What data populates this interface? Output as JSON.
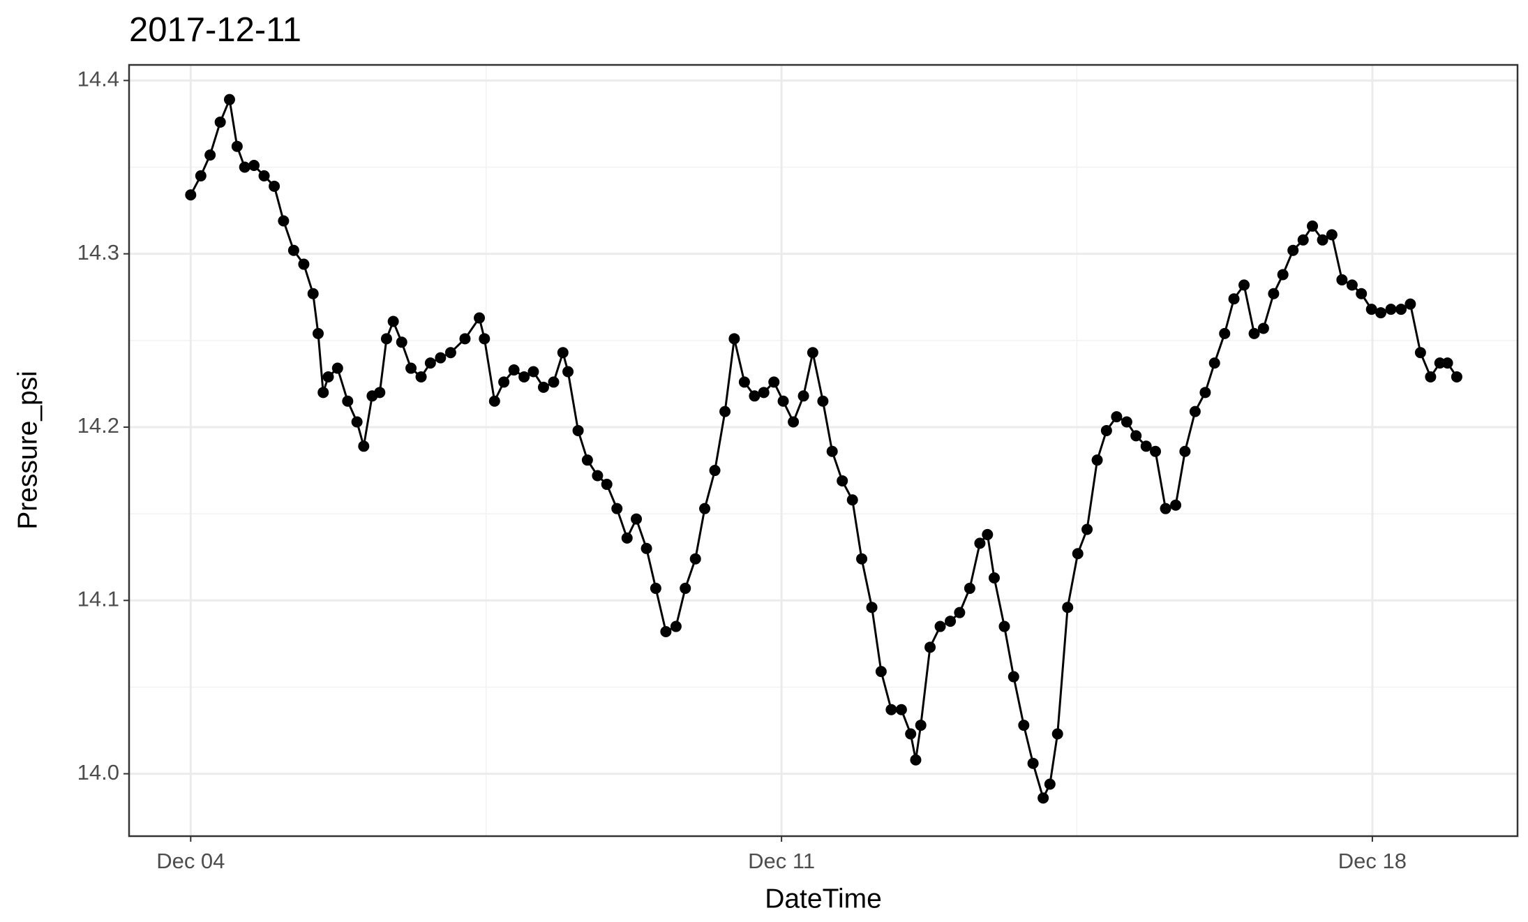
{
  "chart_data": {
    "type": "scatter",
    "title": "2017-12-11",
    "xlabel": "DateTime",
    "ylabel": "Pressure_psi",
    "color": "#000000",
    "connect": true,
    "grid": true,
    "xlim": [
      3.27,
      19.72
    ],
    "ylim": [
      13.964,
      14.409
    ],
    "xticks": [
      {
        "value": 4,
        "label": "Dec 04"
      },
      {
        "value": 11,
        "label": "Dec 11"
      },
      {
        "value": 18,
        "label": "Dec 18"
      }
    ],
    "xminor": [
      7.5,
      14.5
    ],
    "yticks": [
      {
        "value": 14,
        "label": "14.0"
      },
      14.1,
      14.2,
      14.3,
      14.4
    ],
    "yminor": [
      14.05,
      14.15,
      14.25,
      14.35
    ],
    "x": [
      4.0,
      4.12,
      4.23,
      4.35,
      4.46,
      4.55,
      4.64,
      4.75,
      4.87,
      4.99,
      5.1,
      5.22,
      5.34,
      5.45,
      5.51,
      5.57,
      5.63,
      5.74,
      5.86,
      5.97,
      6.05,
      6.15,
      6.24,
      6.32,
      6.4,
      6.5,
      6.61,
      6.73,
      6.84,
      6.96,
      7.08,
      7.25,
      7.42,
      7.48,
      7.6,
      7.71,
      7.83,
      7.95,
      8.06,
      8.18,
      8.3,
      8.41,
      8.47,
      8.59,
      8.7,
      8.82,
      8.93,
      9.05,
      9.17,
      9.28,
      9.4,
      9.51,
      9.63,
      9.75,
      9.86,
      9.98,
      10.09,
      10.21,
      10.33,
      10.44,
      10.56,
      10.68,
      10.79,
      10.91,
      11.02,
      11.14,
      11.26,
      11.37,
      11.49,
      11.6,
      11.72,
      11.84,
      11.95,
      12.07,
      12.18,
      12.3,
      12.42,
      12.53,
      12.59,
      12.65,
      12.76,
      12.88,
      13.0,
      13.11,
      13.23,
      13.35,
      13.44,
      13.52,
      13.64,
      13.75,
      13.87,
      13.98,
      14.1,
      14.18,
      14.27,
      14.39,
      14.51,
      14.62,
      14.74,
      14.85,
      14.97,
      15.09,
      15.2,
      15.32,
      15.43,
      15.55,
      15.67,
      15.78,
      15.9,
      16.02,
      16.13,
      16.25,
      16.36,
      16.48,
      16.6,
      16.71,
      16.83,
      16.94,
      17.06,
      17.18,
      17.29,
      17.41,
      17.52,
      17.64,
      17.76,
      17.87,
      17.99,
      18.1,
      18.22,
      18.34,
      18.45,
      18.57,
      18.69,
      18.8,
      18.89,
      19.0
    ],
    "values": [
      14.334,
      14.345,
      14.357,
      14.376,
      14.389,
      14.362,
      14.35,
      14.351,
      14.345,
      14.339,
      14.319,
      14.302,
      14.294,
      14.277,
      14.254,
      14.22,
      14.229,
      14.234,
      14.215,
      14.203,
      14.189,
      14.218,
      14.22,
      14.251,
      14.261,
      14.249,
      14.234,
      14.229,
      14.237,
      14.24,
      14.243,
      14.251,
      14.263,
      14.251,
      14.215,
      14.226,
      14.233,
      14.229,
      14.232,
      14.223,
      14.226,
      14.243,
      14.232,
      14.198,
      14.181,
      14.172,
      14.167,
      14.153,
      14.136,
      14.147,
      14.13,
      14.107,
      14.082,
      14.085,
      14.107,
      14.124,
      14.153,
      14.175,
      14.209,
      14.251,
      14.226,
      14.218,
      14.22,
      14.226,
      14.215,
      14.203,
      14.218,
      14.243,
      14.215,
      14.186,
      14.169,
      14.158,
      14.124,
      14.096,
      14.059,
      14.037,
      14.037,
      14.023,
      14.008,
      14.028,
      14.073,
      14.085,
      14.088,
      14.093,
      14.107,
      14.133,
      14.138,
      14.113,
      14.085,
      14.056,
      14.028,
      14.006,
      13.986,
      13.994,
      14.023,
      14.096,
      14.127,
      14.141,
      14.181,
      14.198,
      14.206,
      14.203,
      14.195,
      14.189,
      14.186,
      14.153,
      14.155,
      14.186,
      14.209,
      14.22,
      14.237,
      14.254,
      14.274,
      14.282,
      14.254,
      14.257,
      14.277,
      14.288,
      14.302,
      14.308,
      14.316,
      14.308,
      14.311,
      14.285,
      14.282,
      14.277,
      14.268,
      14.266,
      14.268,
      14.268,
      14.271,
      14.243,
      14.229,
      14.237,
      14.237,
      14.229
    ]
  }
}
